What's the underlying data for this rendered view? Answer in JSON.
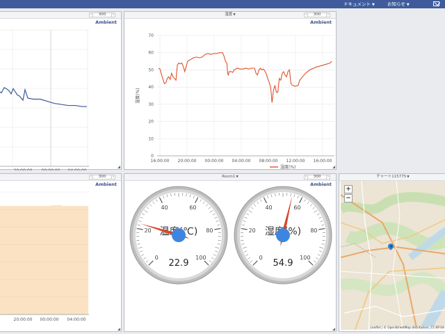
{
  "header": {
    "menu_documents": "ドキュメント",
    "menu_news": "お知らせ",
    "mail_icon": "envelope-icon",
    "bar_color": "#3f5b9c"
  },
  "panels": {
    "top_left": {
      "count": "300",
      "label": "Ambient"
    },
    "top_main": {
      "title": "湿度",
      "count": "300",
      "label": "Ambient"
    },
    "bottom_left": {
      "count": "300",
      "label": "Ambient"
    },
    "gauges": {
      "title": "Room1",
      "count": "300",
      "label": "Ambient"
    },
    "map": {
      "title": "チャート115775",
      "zoom_in": "+",
      "zoom_out": "−",
      "attribution": "Leaflet | © OpenStreetMap distributors, CC-BY-SA"
    }
  },
  "gauges": [
    {
      "label": "温度(℃)",
      "value": "22.9",
      "min": 0,
      "max": 100,
      "ticks": [
        "0",
        "20",
        "40",
        "60",
        "80",
        "100"
      ]
    },
    {
      "label": "湿度(%)",
      "value": "54.9",
      "min": 0,
      "max": 100,
      "ticks": [
        "0",
        "20",
        "40",
        "60",
        "80",
        "100"
      ]
    }
  ],
  "chart_data": [
    {
      "type": "line",
      "series": [
        {
          "name": "温度(℃)",
          "color": "#3b5998",
          "points": [
            [
              0,
              72
            ],
            [
              4,
              70
            ],
            [
              8,
              75
            ],
            [
              11,
              74
            ],
            [
              15,
              72
            ],
            [
              18,
              69
            ],
            [
              21,
              74
            ],
            [
              24,
              71
            ],
            [
              27,
              68
            ],
            [
              30,
              67
            ],
            [
              35,
              63
            ],
            [
              38,
              73
            ],
            [
              42,
              65
            ],
            [
              50,
              64
            ],
            [
              60,
              64
            ],
            [
              70,
              62
            ],
            [
              80,
              60
            ],
            [
              90,
              59
            ],
            [
              100,
              58
            ],
            [
              110,
              58
            ],
            [
              120,
              57
            ],
            [
              127,
              57
            ]
          ]
        }
      ],
      "x_tick_labels": [
        "20:00:00",
        "00:00:00",
        "04:00:00"
      ]
    },
    {
      "type": "line",
      "title": "湿度",
      "ylabel": "湿度(%)",
      "ylim": [
        0,
        70
      ],
      "y_ticks": [
        0,
        10,
        20,
        30,
        40,
        50,
        60,
        70
      ],
      "x_tick_labels": [
        "16:00:00",
        "20:00:00",
        "00:00:00",
        "04:00:00",
        "08:00:00",
        "12:00:00",
        "16:00:00",
        "20:00:00",
        "00:00:00",
        "04:00:00"
      ],
      "series": [
        {
          "name": "湿度(%)",
          "color": "#e0512b",
          "data": [
            [
              0,
              51
            ],
            [
              1,
              50.5
            ],
            [
              2.5,
              46
            ],
            [
              4,
              42
            ],
            [
              5,
              42.5
            ],
            [
              6,
              45
            ],
            [
              7,
              46
            ],
            [
              8,
              44.5
            ],
            [
              9,
              48
            ],
            [
              10,
              46
            ],
            [
              11,
              45
            ],
            [
              12,
              44
            ],
            [
              12.5,
              49
            ],
            [
              13,
              53
            ],
            [
              14,
              54
            ],
            [
              15,
              53.5
            ],
            [
              16,
              54
            ],
            [
              17,
              52
            ],
            [
              18,
              49
            ],
            [
              19,
              52
            ],
            [
              20,
              55
            ],
            [
              21,
              55.5
            ],
            [
              22,
              56
            ],
            [
              24,
              57
            ],
            [
              26,
              57.5
            ],
            [
              28,
              57
            ],
            [
              30,
              57.5
            ],
            [
              32,
              59
            ],
            [
              34,
              59.5
            ],
            [
              36,
              59
            ],
            [
              38,
              59.5
            ],
            [
              40,
              59.5
            ],
            [
              42,
              60
            ],
            [
              44,
              60
            ],
            [
              45,
              58
            ],
            [
              46,
              55
            ],
            [
              47,
              54
            ],
            [
              47.5,
              48
            ],
            [
              48,
              47
            ],
            [
              48.5,
              49
            ],
            [
              50,
              49
            ],
            [
              51,
              48.5
            ],
            [
              52,
              50
            ],
            [
              54,
              51
            ],
            [
              56,
              50.5
            ],
            [
              58,
              50.5
            ],
            [
              60,
              51
            ],
            [
              62,
              50.5
            ],
            [
              64,
              51
            ],
            [
              66,
              51
            ],
            [
              67,
              48
            ],
            [
              68,
              47
            ],
            [
              69,
              50
            ],
            [
              70,
              51
            ],
            [
              71,
              50
            ],
            [
              72,
              50.5
            ],
            [
              73,
              49.5
            ],
            [
              74,
              48
            ],
            [
              75,
              45
            ],
            [
              76,
              43
            ],
            [
              77,
              40
            ],
            [
              77.5,
              36
            ],
            [
              78,
              31
            ],
            [
              79,
              38
            ],
            [
              80,
              41
            ],
            [
              81,
              37
            ],
            [
              82,
              37
            ],
            [
              83,
              45
            ],
            [
              84,
              44
            ],
            [
              85,
              48
            ],
            [
              86,
              49
            ],
            [
              87,
              47
            ],
            [
              88,
              46
            ],
            [
              89,
              49
            ],
            [
              90,
              50
            ],
            [
              91,
              42
            ],
            [
              92,
              41
            ],
            [
              94,
              40.5
            ],
            [
              96,
              41
            ],
            [
              97,
              44
            ],
            [
              99,
              46
            ],
            [
              101,
              48
            ],
            [
              104,
              50
            ],
            [
              108,
              51.5
            ],
            [
              112,
              52.5
            ],
            [
              116,
              53.5
            ],
            [
              118,
              54
            ],
            [
              119,
              55
            ]
          ]
        }
      ],
      "legend": "bottom"
    },
    {
      "type": "bar",
      "series": [
        {
          "name": "",
          "color": "#f5c07a"
        }
      ],
      "x_tick_labels": [
        "20:00:00",
        "00:00:00",
        "04:00:00"
      ]
    }
  ]
}
